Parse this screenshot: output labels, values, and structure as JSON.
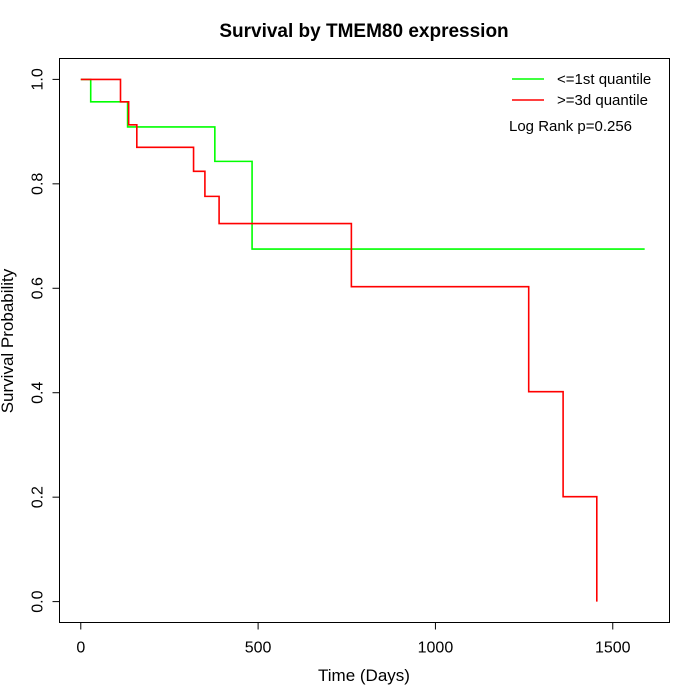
{
  "chart_data": {
    "type": "line",
    "title": "Survival by TMEM80 expression",
    "xlabel": "Time (Days)",
    "ylabel": "Survival Probability",
    "xlim": [
      -60,
      1660
    ],
    "ylim": [
      -0.04,
      1.04
    ],
    "x_ticks": [
      0,
      500,
      1000,
      1500
    ],
    "x_tick_labels": [
      "0",
      "500",
      "1000",
      "1500"
    ],
    "y_ticks": [
      0.0,
      0.2,
      0.4,
      0.6,
      0.8,
      1.0
    ],
    "y_tick_labels": [
      "0.0",
      "0.2",
      "0.4",
      "0.6",
      "0.8",
      "1.0"
    ],
    "grid": false,
    "legend_position": "top-right",
    "annotation": "Log Rank p=0.256",
    "series": [
      {
        "name": "<=1st quantile",
        "color": "#00ff00",
        "steps": [
          {
            "x": 0,
            "y": 1.0
          },
          {
            "x": 28,
            "y": 0.957
          },
          {
            "x": 132,
            "y": 0.909
          },
          {
            "x": 378,
            "y": 0.843
          },
          {
            "x": 483,
            "y": 0.675
          },
          {
            "x": 1590,
            "y": 0.675
          }
        ]
      },
      {
        "name": ">=3d quantile",
        "color": "#ff0000",
        "steps": [
          {
            "x": 0,
            "y": 1.0
          },
          {
            "x": 112,
            "y": 0.957
          },
          {
            "x": 135,
            "y": 0.913
          },
          {
            "x": 158,
            "y": 0.87
          },
          {
            "x": 318,
            "y": 0.824
          },
          {
            "x": 350,
            "y": 0.776
          },
          {
            "x": 390,
            "y": 0.724
          },
          {
            "x": 763,
            "y": 0.603
          },
          {
            "x": 1263,
            "y": 0.402
          },
          {
            "x": 1360,
            "y": 0.201
          },
          {
            "x": 1455,
            "y": 0.0
          }
        ]
      }
    ]
  }
}
